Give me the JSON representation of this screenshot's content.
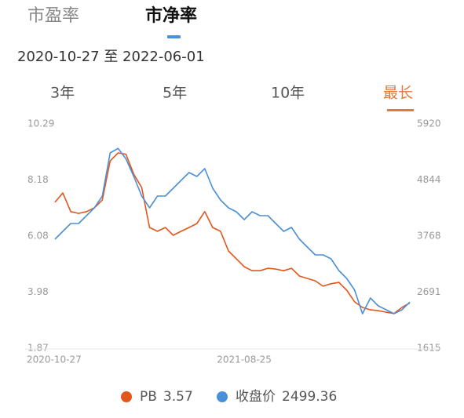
{
  "tabs": {
    "items": [
      "市盈率",
      "市净率"
    ],
    "active": 1
  },
  "date_range": "2020-10-27 至 2022-06-01",
  "periods": {
    "items": [
      "3年",
      "5年",
      "10年",
      "最长"
    ],
    "active": 3
  },
  "chart_data": {
    "type": "line",
    "categories": [
      "2020-10-27",
      null,
      null,
      null,
      null,
      null,
      null,
      null,
      null,
      null,
      null,
      null,
      null,
      null,
      null,
      null,
      null,
      null,
      null,
      null,
      null,
      null,
      null,
      null,
      "2021-08-25",
      null,
      null,
      null,
      null,
      null,
      null,
      null,
      null,
      null,
      null,
      null,
      null,
      null,
      null,
      null,
      null,
      null,
      null,
      null,
      null,
      null
    ],
    "ylim": [
      1.87,
      10.29
    ],
    "yticks": [
      1.87,
      3.98,
      6.08,
      8.18,
      10.29
    ],
    "y2lim": [
      1615,
      5920
    ],
    "y2ticks": [
      1615,
      2691,
      3768,
      4844,
      5920
    ],
    "grid": false,
    "legend": "bottom",
    "series": [
      {
        "name": "PB",
        "color": "#e2561b",
        "values": [
          7.35,
          7.7,
          7.0,
          6.93,
          7.0,
          7.14,
          7.43,
          8.9,
          9.2,
          9.15,
          8.4,
          7.9,
          6.4,
          6.26,
          6.4,
          6.11,
          6.26,
          6.4,
          6.55,
          7.0,
          6.4,
          6.26,
          5.52,
          5.23,
          4.93,
          4.78,
          4.78,
          4.87,
          4.84,
          4.78,
          4.87,
          4.58,
          4.49,
          4.4,
          4.2,
          4.29,
          4.34,
          4.05,
          3.61,
          3.4,
          3.31,
          3.28,
          3.22,
          3.17,
          3.4,
          3.57
        ]
      },
      {
        "name": "收盘价",
        "color": "#4a8fd8",
        "axis": "y2",
        "values": [
          3707,
          3858,
          4008,
          4008,
          4159,
          4309,
          4535,
          5363,
          5450,
          5250,
          4911,
          4535,
          4309,
          4535,
          4535,
          4686,
          4836,
          4987,
          4911,
          5062,
          4686,
          4460,
          4309,
          4234,
          4084,
          4234,
          4159,
          4159,
          4008,
          3858,
          3933,
          3707,
          3557,
          3406,
          3406,
          3331,
          3105,
          2955,
          2729,
          2277,
          2578,
          2428,
          2352,
          2277,
          2352,
          2499.36
        ]
      }
    ]
  }
}
